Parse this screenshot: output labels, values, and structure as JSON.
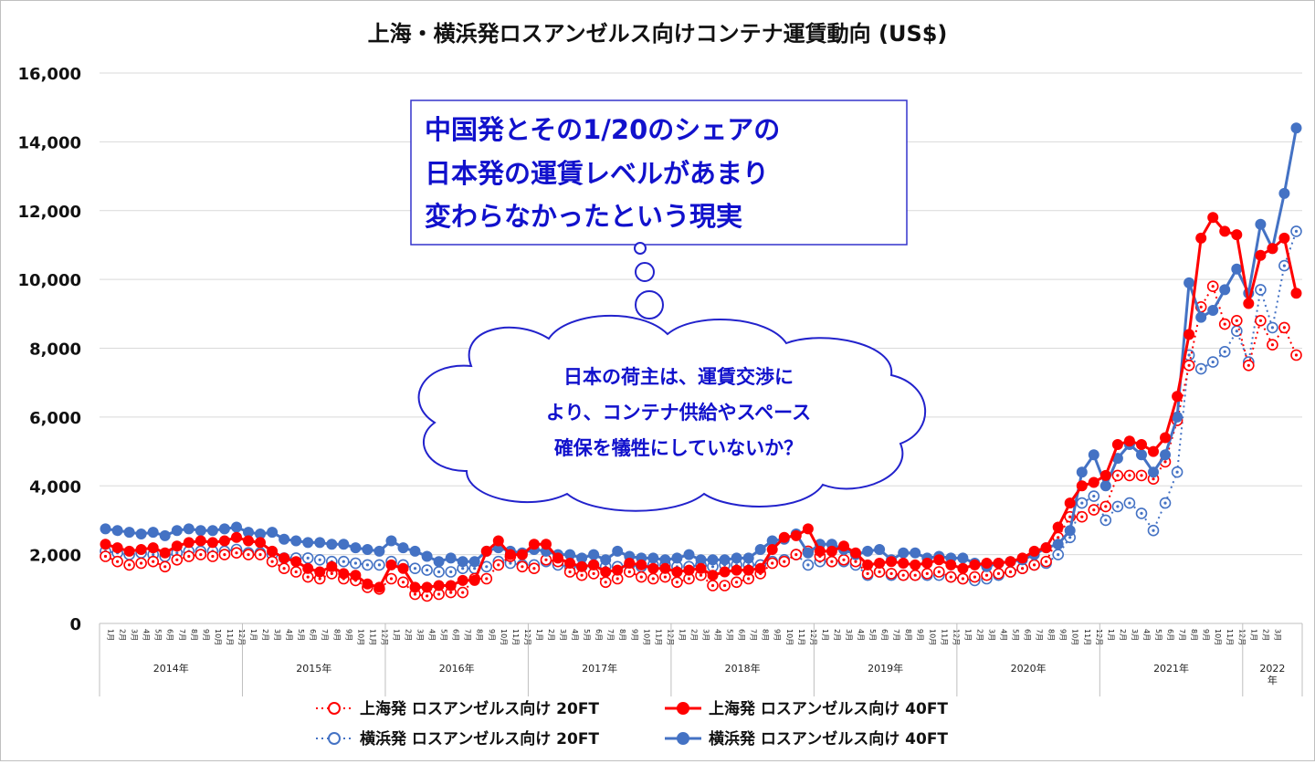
{
  "chart_data": {
    "type": "line",
    "title": "上海・横浜発ロスアンゼルス向けコンテナ運賃動向 (US$)",
    "ylim": [
      0,
      16000
    ],
    "yticks": [
      "16,000",
      "14,000",
      "12,000",
      "10,000",
      "8,000",
      "6,000",
      "4,000",
      "2,000",
      "0"
    ],
    "x_month_labels": [
      "1月",
      "2月",
      "3月",
      "4月",
      "5月",
      "6月",
      "7月",
      "8月",
      "9月",
      "10月",
      "11月",
      "12月"
    ],
    "x_month_labels_last_year": [
      "1月",
      "2月",
      "3月"
    ],
    "x_year_labels": [
      "2014年",
      "2015年",
      "2016年",
      "2017年",
      "2018年",
      "2019年",
      "2020年",
      "2021年",
      "2022年"
    ],
    "grid": "horizontal",
    "legend_position": "bottom",
    "series": [
      {
        "name": "上海発 ロスアンゼルス向け 20FT",
        "color": "#ff0000",
        "style": "dotted-hollow",
        "values": [
          1950,
          1800,
          1700,
          1750,
          1800,
          1650,
          1850,
          1950,
          2000,
          1950,
          2000,
          2050,
          2000,
          2000,
          1800,
          1600,
          1500,
          1350,
          1300,
          1450,
          1300,
          1250,
          1050,
          1000,
          1300,
          1200,
          850,
          800,
          850,
          900,
          900,
          1300,
          1300,
          1700,
          1950,
          1650,
          1600,
          1850,
          1800,
          1500,
          1400,
          1450,
          1200,
          1300,
          1500,
          1350,
          1300,
          1350,
          1200,
          1300,
          1400,
          1100,
          1100,
          1200,
          1300,
          1450,
          1750,
          1800,
          2000,
          2100,
          1950,
          1800,
          1850,
          1800,
          1450,
          1500,
          1450,
          1400,
          1400,
          1450,
          1500,
          1350,
          1300,
          1350,
          1400,
          1450,
          1500,
          1600,
          1700,
          1800,
          2500,
          3100,
          3100,
          3300,
          3400,
          4300,
          4300,
          4300,
          4200,
          4700,
          5900,
          7500,
          9200,
          9800,
          8700,
          8800,
          7500,
          8800,
          8100,
          8600,
          7800
        ]
      },
      {
        "name": "上海発 ロスアンゼルス向け 40FT",
        "color": "#ff0000",
        "style": "solid-filled",
        "values": [
          2300,
          2200,
          2100,
          2150,
          2200,
          2050,
          2250,
          2350,
          2400,
          2350,
          2400,
          2500,
          2400,
          2350,
          2100,
          1900,
          1800,
          1600,
          1500,
          1650,
          1450,
          1400,
          1150,
          1050,
          1700,
          1600,
          1050,
          1050,
          1100,
          1100,
          1250,
          1250,
          2100,
          2400,
          2000,
          2000,
          2300,
          2300,
          1900,
          1750,
          1650,
          1700,
          1500,
          1550,
          1750,
          1700,
          1600,
          1600,
          1500,
          1550,
          1600,
          1400,
          1500,
          1550,
          1550,
          1600,
          2150,
          2500,
          2550,
          2750,
          2100,
          2100,
          2250,
          2050,
          1700,
          1750,
          1800,
          1750,
          1700,
          1750,
          1850,
          1700,
          1600,
          1700,
          1750,
          1750,
          1800,
          1900,
          2100,
          2200,
          2800,
          3500,
          4000,
          4100,
          4300,
          5200,
          5300,
          5200,
          5000,
          5400,
          6600,
          8400,
          11200,
          11800,
          11400,
          11300,
          9300,
          10700,
          10900,
          11200,
          9600
        ]
      },
      {
        "name": "横浜発 ロスアンゼルス向け 20FT",
        "color": "#4472c4",
        "style": "dotted-hollow",
        "values": [
          2100,
          2050,
          2000,
          2050,
          2000,
          1950,
          2050,
          2100,
          2100,
          2100,
          2100,
          2150,
          2050,
          2050,
          2000,
          1900,
          1900,
          1900,
          1850,
          1800,
          1800,
          1750,
          1700,
          1700,
          1800,
          1700,
          1600,
          1550,
          1500,
          1500,
          1600,
          1600,
          1650,
          1800,
          1750,
          1700,
          1700,
          1800,
          1700,
          1650,
          1650,
          1700,
          1650,
          1650,
          1700,
          1650,
          1700,
          1700,
          1650,
          1650,
          1700,
          1650,
          1700,
          1700,
          1700,
          1700,
          1800,
          1850,
          2000,
          1700,
          1800,
          1800,
          1800,
          1700,
          1400,
          1500,
          1400,
          1400,
          1400,
          1400,
          1400,
          1350,
          1300,
          1250,
          1300,
          1400,
          1500,
          1600,
          1700,
          1750,
          2000,
          2500,
          3500,
          3700,
          3000,
          3400,
          3500,
          3200,
          2700,
          3500,
          4400,
          7800,
          7400,
          7600,
          7900,
          8500,
          7600,
          9700,
          8600,
          10400,
          11400
        ]
      },
      {
        "name": "横浜発 ロスアンゼルス向け 40FT",
        "color": "#4472c4",
        "style": "solid-filled",
        "values": [
          2750,
          2700,
          2650,
          2600,
          2650,
          2550,
          2700,
          2750,
          2700,
          2700,
          2750,
          2800,
          2650,
          2600,
          2650,
          2450,
          2400,
          2350,
          2350,
          2300,
          2300,
          2200,
          2150,
          2100,
          2400,
          2200,
          2100,
          1950,
          1800,
          1900,
          1800,
          1800,
          2100,
          2200,
          2100,
          2050,
          2150,
          2100,
          2000,
          2000,
          1900,
          2000,
          1850,
          2100,
          1950,
          1900,
          1900,
          1850,
          1900,
          2000,
          1850,
          1850,
          1850,
          1900,
          1900,
          2150,
          2400,
          2450,
          2600,
          2050,
          2300,
          2300,
          2150,
          2000,
          2100,
          2150,
          1850,
          2050,
          2050,
          1900,
          1950,
          1900,
          1900,
          1750,
          1650,
          1750,
          1800,
          1850,
          2000,
          2200,
          2300,
          2700,
          4400,
          4900,
          4000,
          4800,
          5200,
          4900,
          4400,
          4900,
          6000,
          9900,
          8900,
          9100,
          9700,
          10300,
          9600,
          11600,
          10900,
          12500,
          14400
        ]
      }
    ]
  },
  "callout_box": {
    "lines": [
      "中国発とその1/20のシェアの",
      "日本発の運賃レベルがあまり",
      "変わらなかったという現実"
    ]
  },
  "cloud": {
    "lines": [
      "日本の荷主は、運賃交渉に",
      "より、コンテナ供給やスペース",
      "確保を犠牲にしていないか？"
    ]
  }
}
